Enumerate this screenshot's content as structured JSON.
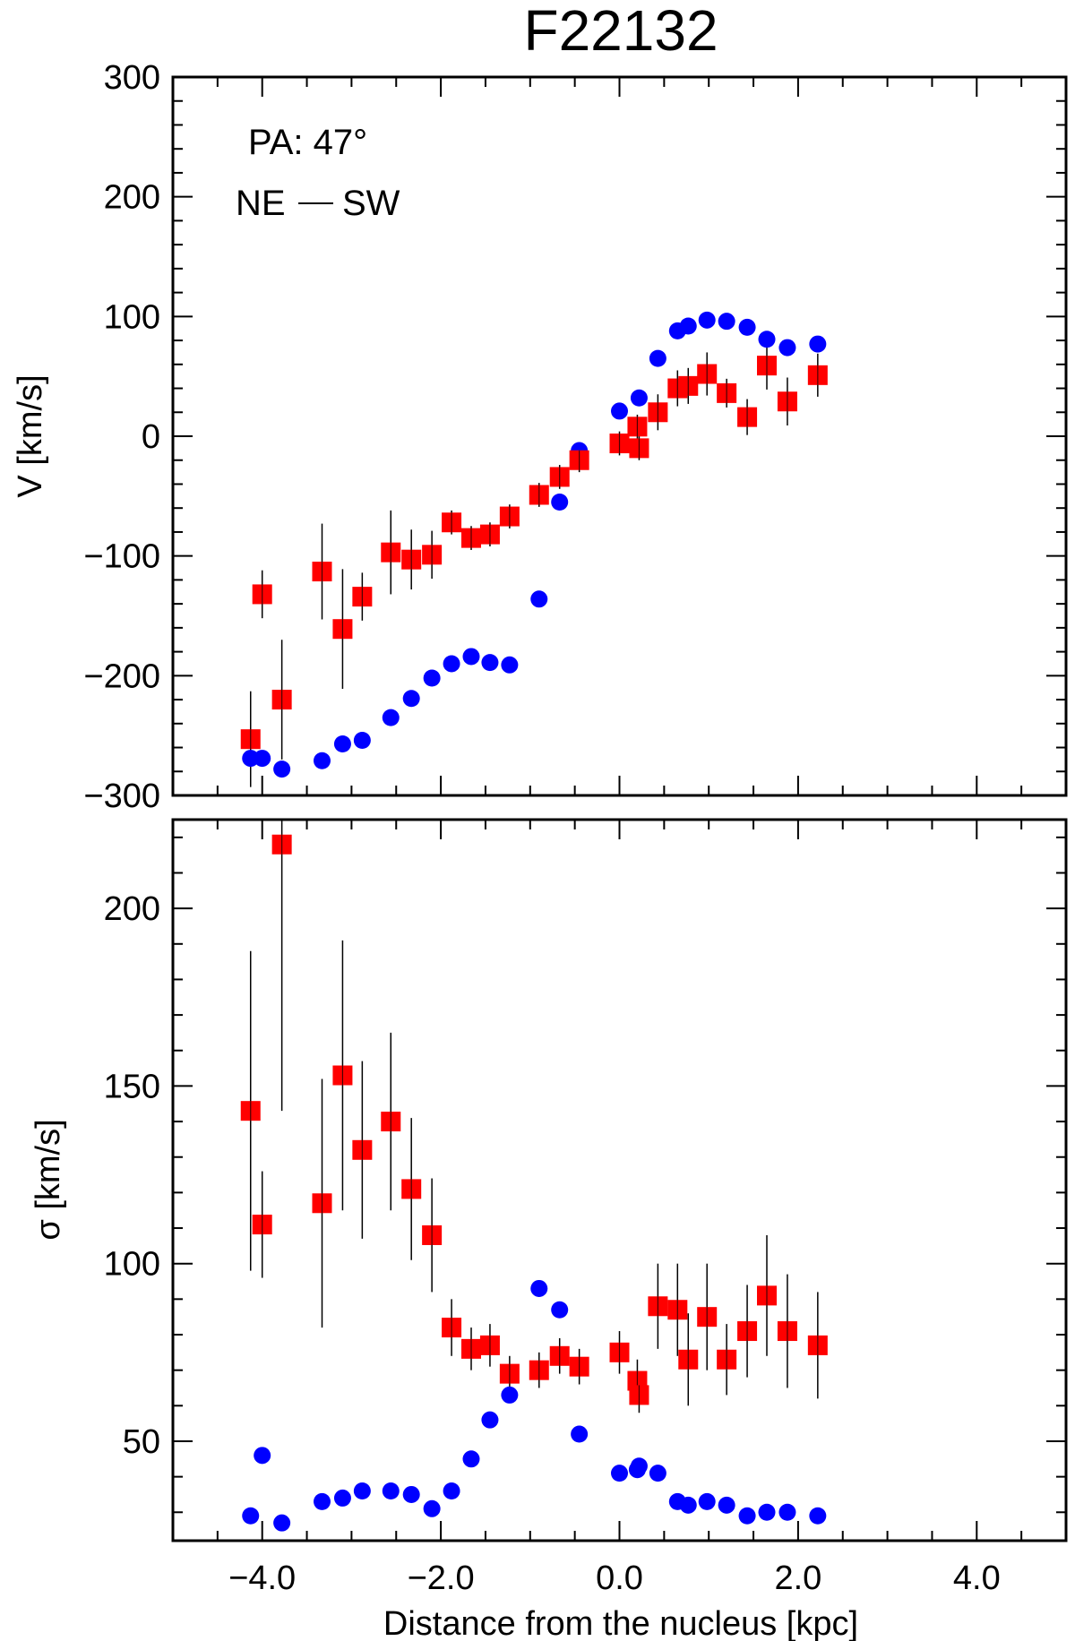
{
  "title": "F22132",
  "chart_data": [
    {
      "type": "scatter",
      "panel": "top",
      "ylabel": "V [km/s]",
      "xlim": [
        -5.0,
        5.0
      ],
      "ylim": [
        -300,
        300
      ],
      "yticks": [
        -300,
        -200,
        -100,
        0,
        100,
        200,
        300
      ],
      "ytick_labels": [
        "−300",
        "−200",
        "−100",
        "0",
        "100",
        "200",
        "300"
      ],
      "annotations": {
        "pa": "PA: 47°",
        "ne": "NE",
        "sw": "SW"
      },
      "series": [
        {
          "name": "blue circles",
          "marker": "circle",
          "color": "#0000ff",
          "points": [
            [
              -4.13,
              -269
            ],
            [
              -4.0,
              -269
            ],
            [
              -3.78,
              -278
            ],
            [
              -3.33,
              -271
            ],
            [
              -3.1,
              -257
            ],
            [
              -2.88,
              -254
            ],
            [
              -2.56,
              -235
            ],
            [
              -2.33,
              -219
            ],
            [
              -2.1,
              -202
            ],
            [
              -1.88,
              -190
            ],
            [
              -1.66,
              -184
            ],
            [
              -1.45,
              -189
            ],
            [
              -1.23,
              -191
            ],
            [
              -0.9,
              -136
            ],
            [
              -0.67,
              -55
            ],
            [
              -0.45,
              -12
            ],
            [
              0.0,
              21
            ],
            [
              0.2,
              8
            ],
            [
              0.22,
              32
            ],
            [
              0.43,
              65
            ],
            [
              0.65,
              88
            ],
            [
              0.77,
              92
            ],
            [
              0.98,
              97
            ],
            [
              1.2,
              96
            ],
            [
              1.43,
              91
            ],
            [
              1.65,
              81
            ],
            [
              1.88,
              74
            ],
            [
              2.22,
              77
            ]
          ]
        },
        {
          "name": "red squares",
          "marker": "square",
          "color": "#ff0000",
          "points": [
            [
              -4.13,
              -253,
              40
            ],
            [
              -4.0,
              -132,
              20
            ],
            [
              -3.78,
              -220,
              50
            ],
            [
              -3.33,
              -113,
              40
            ],
            [
              -3.1,
              -161,
              50
            ],
            [
              -2.88,
              -134,
              20
            ],
            [
              -2.56,
              -97,
              35
            ],
            [
              -2.33,
              -103,
              25
            ],
            [
              -2.1,
              -99,
              20
            ],
            [
              -1.88,
              -72,
              10
            ],
            [
              -1.66,
              -85,
              10
            ],
            [
              -1.45,
              -82,
              10
            ],
            [
              -1.23,
              -67,
              10
            ],
            [
              -0.9,
              -49,
              10
            ],
            [
              -0.67,
              -34,
              10
            ],
            [
              -0.45,
              -20,
              10
            ],
            [
              0.0,
              -6,
              10
            ],
            [
              0.2,
              8,
              10
            ],
            [
              0.22,
              -10,
              10
            ],
            [
              0.43,
              20,
              15
            ],
            [
              0.65,
              40,
              15
            ],
            [
              0.77,
              42,
              15
            ],
            [
              0.98,
              52,
              18
            ],
            [
              1.2,
              36,
              12
            ],
            [
              1.43,
              16,
              15
            ],
            [
              1.65,
              59,
              20
            ],
            [
              1.88,
              29,
              20
            ],
            [
              2.22,
              51,
              18
            ]
          ]
        }
      ]
    },
    {
      "type": "scatter",
      "panel": "bottom",
      "xlabel": "Distance from the nucleus [kpc]",
      "ylabel": "σ [km/s]",
      "xlim": [
        -5.0,
        5.0
      ],
      "ylim": [
        22,
        225
      ],
      "xticks": [
        -4.0,
        -2.0,
        0.0,
        2.0,
        4.0
      ],
      "xtick_labels": [
        "−4.0",
        "−2.0",
        "0.0",
        "2.0",
        "4.0"
      ],
      "yticks": [
        50,
        100,
        150,
        200
      ],
      "ytick_labels": [
        "50",
        "100",
        "150",
        "200"
      ],
      "series": [
        {
          "name": "blue circles",
          "marker": "circle",
          "color": "#0000ff",
          "points": [
            [
              -4.13,
              29
            ],
            [
              -4.0,
              46
            ],
            [
              -3.78,
              27
            ],
            [
              -3.33,
              33
            ],
            [
              -3.1,
              34
            ],
            [
              -2.88,
              36
            ],
            [
              -2.56,
              36
            ],
            [
              -2.33,
              35
            ],
            [
              -2.1,
              31
            ],
            [
              -1.88,
              36
            ],
            [
              -1.66,
              45
            ],
            [
              -1.45,
              56
            ],
            [
              -1.23,
              63
            ],
            [
              -0.9,
              93
            ],
            [
              -0.67,
              87
            ],
            [
              -0.45,
              52
            ],
            [
              0.0,
              41
            ],
            [
              0.2,
              42
            ],
            [
              0.22,
              43
            ],
            [
              0.43,
              41
            ],
            [
              0.65,
              33
            ],
            [
              0.77,
              32
            ],
            [
              0.98,
              33
            ],
            [
              1.2,
              32
            ],
            [
              1.43,
              29
            ],
            [
              1.65,
              30
            ],
            [
              1.88,
              30
            ],
            [
              2.22,
              29
            ]
          ]
        },
        {
          "name": "red squares",
          "marker": "square",
          "color": "#ff0000",
          "points": [
            [
              -4.13,
              143,
              45
            ],
            [
              -4.0,
              111,
              15
            ],
            [
              -3.78,
              218,
              75
            ],
            [
              -3.33,
              117,
              35
            ],
            [
              -3.1,
              153,
              38
            ],
            [
              -2.88,
              132,
              25
            ],
            [
              -2.56,
              140,
              25
            ],
            [
              -2.33,
              121,
              20
            ],
            [
              -2.1,
              108,
              16
            ],
            [
              -1.88,
              82,
              8
            ],
            [
              -1.66,
              76,
              6
            ],
            [
              -1.45,
              77,
              6
            ],
            [
              -1.23,
              69,
              5
            ],
            [
              -0.9,
              70,
              5
            ],
            [
              -0.67,
              74,
              5
            ],
            [
              -0.45,
              71,
              5
            ],
            [
              0.0,
              75,
              6
            ],
            [
              0.2,
              67,
              6
            ],
            [
              0.22,
              63,
              5
            ],
            [
              0.43,
              88,
              12
            ],
            [
              0.65,
              87,
              13
            ],
            [
              0.77,
              73,
              13
            ],
            [
              0.98,
              85,
              15
            ],
            [
              1.2,
              73,
              10
            ],
            [
              1.43,
              81,
              13
            ],
            [
              1.65,
              91,
              17
            ],
            [
              1.88,
              81,
              16
            ],
            [
              2.22,
              77,
              15
            ]
          ]
        }
      ]
    }
  ]
}
